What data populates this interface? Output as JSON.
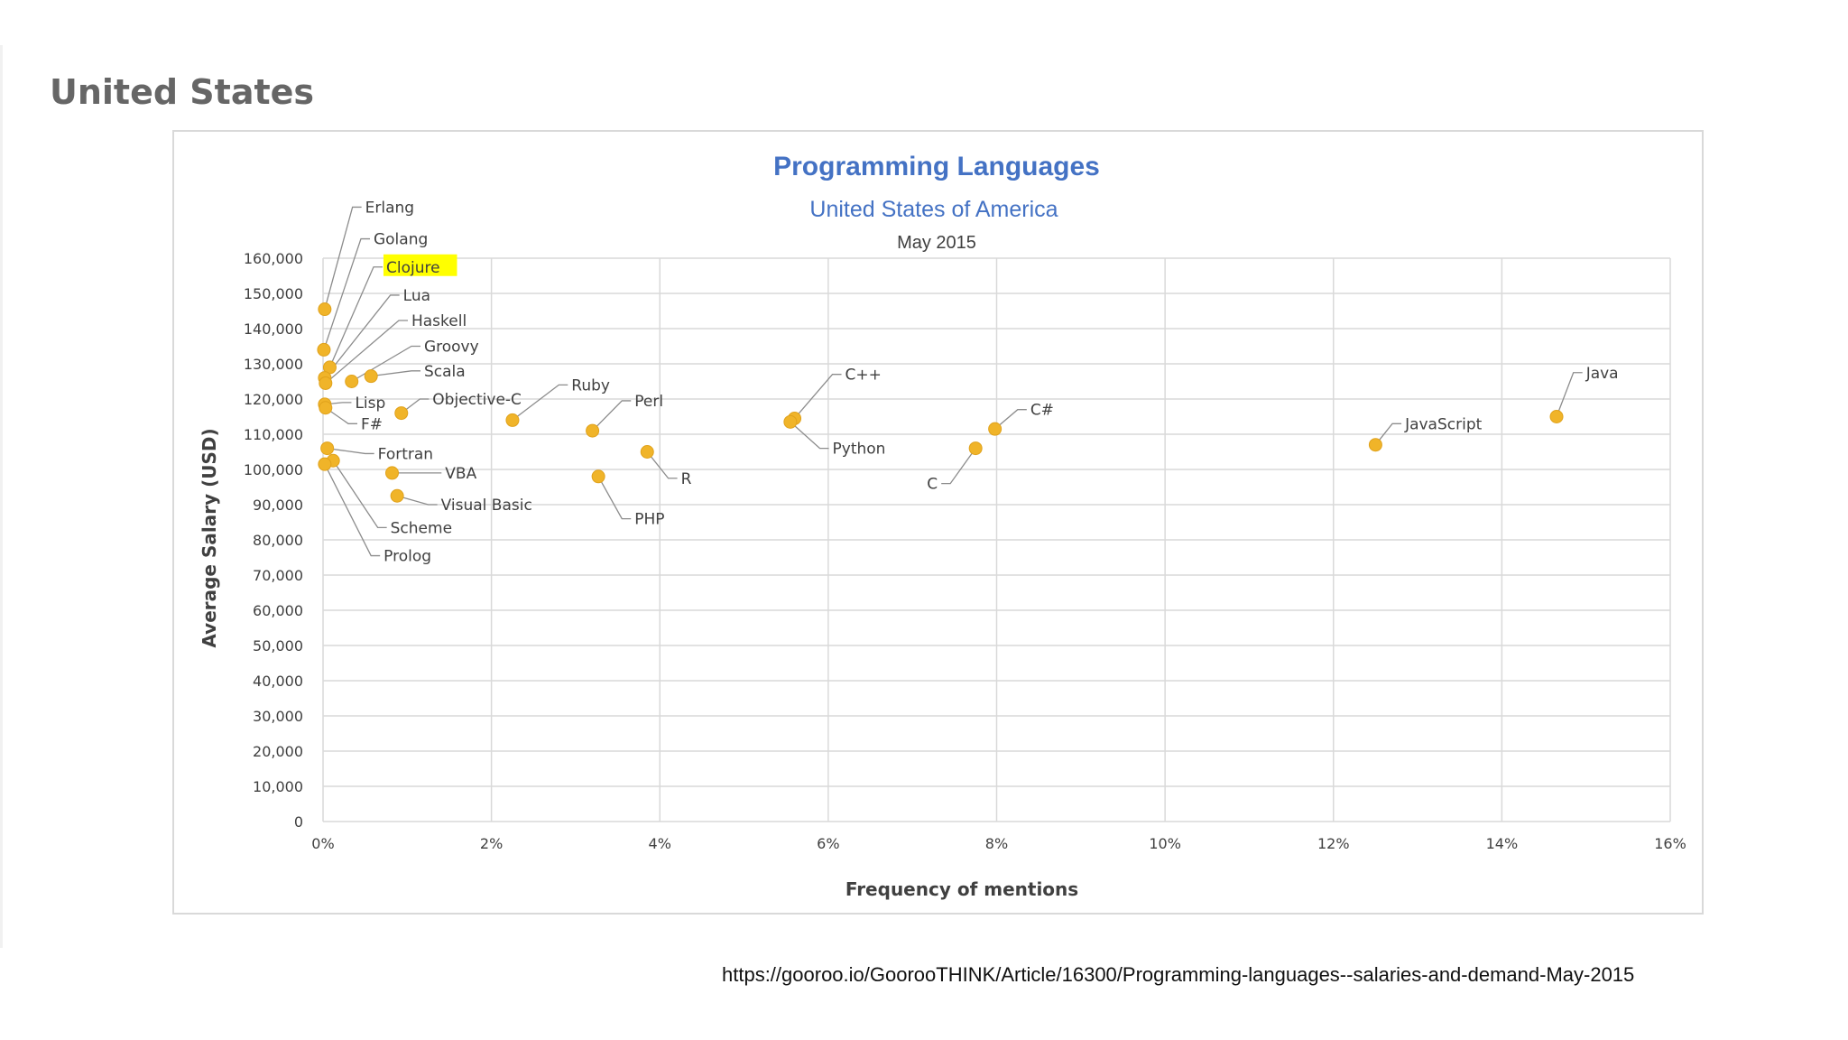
{
  "slide": {
    "heading": "United States",
    "source_url": "https://gooroo.io/GoorooTHINK/Article/16300/Programming-languages--salaries-and-demand-May-2015"
  },
  "colors": {
    "title": "#4472c4",
    "point": "#f4b183",
    "point_fill": "#f0b429",
    "grid": "#d9d9d9",
    "highlight": "#ffff00",
    "text": "#595959"
  },
  "chart_data": {
    "type": "scatter",
    "title": "Programming  Languages",
    "subtitle": "United States of America",
    "date_label": "May 2015",
    "xlabel": "Frequency of mentions",
    "ylabel": "Average Salary (USD)",
    "xlim": [
      0,
      16
    ],
    "ylim": [
      0,
      160000
    ],
    "x_ticks": [
      0,
      2,
      4,
      6,
      8,
      10,
      12,
      14,
      16
    ],
    "x_tick_labels": [
      "0%",
      "2%",
      "4%",
      "6%",
      "8%",
      "10%",
      "12%",
      "14%",
      "16%"
    ],
    "y_ticks": [
      0,
      10000,
      20000,
      30000,
      40000,
      50000,
      60000,
      70000,
      80000,
      90000,
      100000,
      110000,
      120000,
      130000,
      140000,
      150000,
      160000
    ],
    "y_tick_labels": [
      "0",
      "10,000",
      "20,000",
      "30,000",
      "40,000",
      "50,000",
      "60,000",
      "70,000",
      "80,000",
      "90,000",
      "100,000",
      "110,000",
      "120,000",
      "130,000",
      "140,000",
      "150,000",
      "160,000"
    ],
    "grid": true,
    "highlighted": "Clojure",
    "points": [
      {
        "name": "Erlang",
        "x": 0.02,
        "y": 145500,
        "label_x": 0.5,
        "label_y": 174500
      },
      {
        "name": "Golang",
        "x": 0.01,
        "y": 134000,
        "label_x": 0.6,
        "label_y": 165500
      },
      {
        "name": "Clojure",
        "x": 0.08,
        "y": 129000,
        "label_x": 0.75,
        "label_y": 157500
      },
      {
        "name": "Lua",
        "x": 0.02,
        "y": 126000,
        "label_x": 0.95,
        "label_y": 149500
      },
      {
        "name": "Haskell",
        "x": 0.03,
        "y": 124500,
        "label_x": 1.05,
        "label_y": 142300
      },
      {
        "name": "Groovy",
        "x": 0.34,
        "y": 125000,
        "label_x": 1.2,
        "label_y": 135000
      },
      {
        "name": "Scala",
        "x": 0.57,
        "y": 126500,
        "label_x": 1.2,
        "label_y": 128000
      },
      {
        "name": "Lisp",
        "x": 0.02,
        "y": 118500,
        "label_x": 0.38,
        "label_y": 119000
      },
      {
        "name": "F#",
        "x": 0.03,
        "y": 117500,
        "label_x": 0.45,
        "label_y": 113000
      },
      {
        "name": "Objective-C",
        "x": 0.93,
        "y": 116000,
        "label_x": 1.3,
        "label_y": 120000
      },
      {
        "name": "Ruby",
        "x": 2.25,
        "y": 114000,
        "label_x": 2.95,
        "label_y": 124000
      },
      {
        "name": "Perl",
        "x": 3.2,
        "y": 111000,
        "label_x": 3.7,
        "label_y": 119500
      },
      {
        "name": "C++",
        "x": 5.6,
        "y": 114500,
        "label_x": 6.2,
        "label_y": 127000
      },
      {
        "name": "Python",
        "x": 5.55,
        "y": 113500,
        "label_x": 6.05,
        "label_y": 106000
      },
      {
        "name": "C#",
        "x": 7.98,
        "y": 111500,
        "label_x": 8.4,
        "label_y": 117000
      },
      {
        "name": "C",
        "x": 7.75,
        "y": 106000,
        "label_x": 7.3,
        "label_y": 96000
      },
      {
        "name": "JavaScript",
        "x": 12.5,
        "y": 107000,
        "label_x": 12.85,
        "label_y": 113000
      },
      {
        "name": "Java",
        "x": 14.65,
        "y": 115000,
        "label_x": 15.0,
        "label_y": 127500
      },
      {
        "name": "Fortran",
        "x": 0.05,
        "y": 106000,
        "label_x": 0.65,
        "label_y": 104500
      },
      {
        "name": "VBA",
        "x": 0.82,
        "y": 99000,
        "label_x": 1.45,
        "label_y": 99000
      },
      {
        "name": "R",
        "x": 3.85,
        "y": 105000,
        "label_x": 4.25,
        "label_y": 97500
      },
      {
        "name": "PHP",
        "x": 3.27,
        "y": 98000,
        "label_x": 3.7,
        "label_y": 86000
      },
      {
        "name": "Visual Basic",
        "x": 0.88,
        "y": 92500,
        "label_x": 1.4,
        "label_y": 90000
      },
      {
        "name": "Scheme",
        "x": 0.12,
        "y": 102500,
        "label_x": 0.8,
        "label_y": 83500
      },
      {
        "name": "Prolog",
        "x": 0.02,
        "y": 101500,
        "label_x": 0.72,
        "label_y": 75500
      }
    ]
  }
}
